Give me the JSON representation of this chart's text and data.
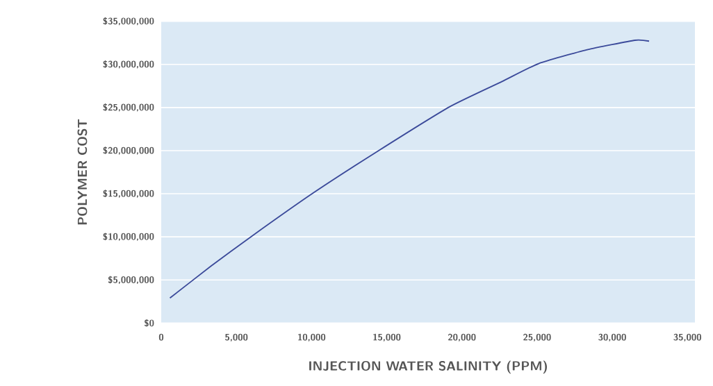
{
  "chart_data": {
    "type": "line",
    "xlabel": "INJECTION WATER SALINITY (PPM)",
    "ylabel": "POLYMER COST",
    "x": [
      580,
      3310,
      6040,
      10120,
      14460,
      19200,
      22650,
      25110,
      28330,
      31510,
      32450
    ],
    "series": [
      {
        "color": "#3b4a9a",
        "values": [
          2900000,
          6600000,
          10100000,
          15100000,
          20000000,
          25100000,
          28000000,
          30100000,
          31700000,
          32800000,
          32700000
        ]
      }
    ],
    "xlim": [
      0,
      35500
    ],
    "ylim": [
      0,
      35000000
    ],
    "xticks": [
      {
        "value": 0,
        "label": "0"
      },
      {
        "value": 5000,
        "label": "5,000"
      },
      {
        "value": 10000,
        "label": "10,000"
      },
      {
        "value": 15000,
        "label": "15,000"
      },
      {
        "value": 20000,
        "label": "20,000"
      },
      {
        "value": 25000,
        "label": "25,000"
      },
      {
        "value": 30000,
        "label": "30,000"
      },
      {
        "value": 35000,
        "label": "35,000"
      }
    ],
    "yticks": [
      {
        "value": 0,
        "label": "$0"
      },
      {
        "value": 5000000,
        "label": "$5,000,000"
      },
      {
        "value": 10000000,
        "label": "$10,000,000"
      },
      {
        "value": 15000000,
        "label": "$15,000,000"
      },
      {
        "value": 20000000,
        "label": "$20,000,000"
      },
      {
        "value": 25000000,
        "label": "$25,000,000"
      },
      {
        "value": 30000000,
        "label": "$30,000,000"
      },
      {
        "value": 35000000,
        "label": "$35,000,000"
      }
    ],
    "grid": "y",
    "marker": "none",
    "line_style": "solid"
  }
}
